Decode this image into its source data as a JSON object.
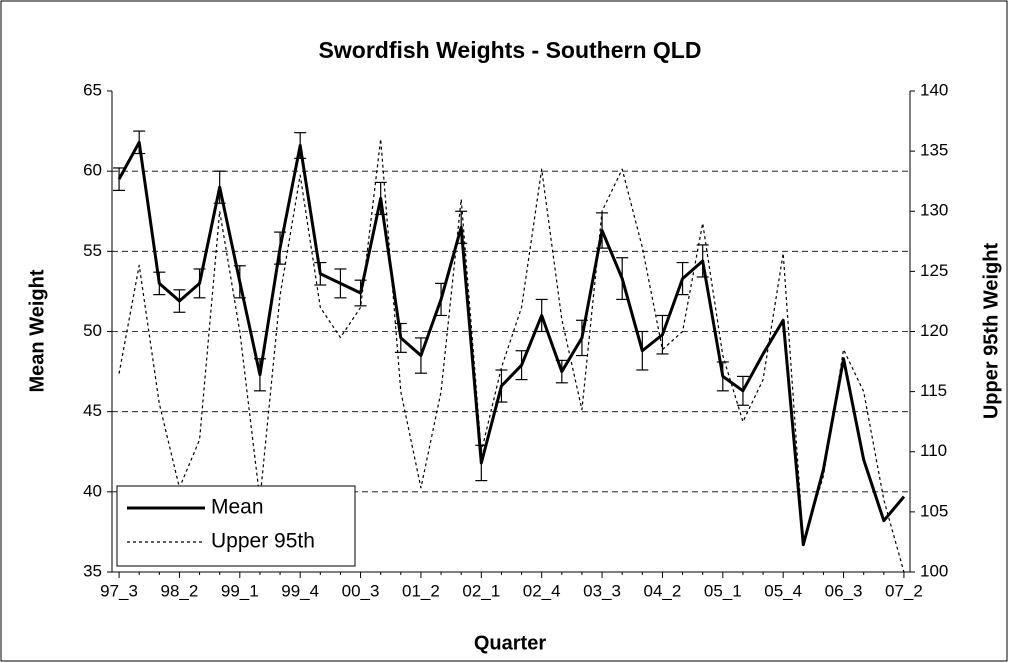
{
  "chart_data": {
    "type": "line",
    "title": "Swordfish Weights - Southern QLD",
    "x_label": "Quarter",
    "y_label": "Mean Weight",
    "y2_label": "Upper 95th Weight",
    "categories": [
      "97_3",
      null,
      null,
      "98_2",
      null,
      null,
      "99_1",
      null,
      null,
      "99_4",
      null,
      null,
      "00_3",
      null,
      null,
      "01_2",
      null,
      null,
      "02_1",
      null,
      null,
      "02_4",
      null,
      null,
      "03_3",
      null,
      null,
      "04_2",
      null,
      null,
      "05_1",
      null,
      null,
      "05_4",
      null,
      null,
      "06_3",
      null,
      null,
      "07_2"
    ],
    "series": [
      {
        "name": "Mean",
        "color": "#000000",
        "width": 3,
        "dash": null,
        "values": [
          59.5,
          61.8,
          53.0,
          51.9,
          53.0,
          59.0,
          53.1,
          47.3,
          55.2,
          61.6,
          53.6,
          53.0,
          52.4,
          58.3,
          49.6,
          48.5,
          52.0,
          56.5,
          41.8,
          46.6,
          47.9,
          51.0,
          47.5,
          49.6,
          56.3,
          53.3,
          48.8,
          49.8,
          53.3,
          54.4,
          47.2,
          46.3,
          48.6,
          50.7,
          36.7,
          41.4,
          48.3,
          42.0,
          38.2,
          39.7
        ],
        "errors": [
          0.7,
          0.7,
          0.7,
          0.7,
          0.9,
          1.0,
          1.0,
          1.0,
          1.0,
          0.8,
          0.7,
          0.9,
          0.8,
          1.0,
          0.9,
          1.1,
          1.0,
          1.0,
          1.1,
          1.0,
          0.9,
          1.0,
          0.7,
          1.1,
          1.1,
          1.3,
          1.2,
          1.2,
          1.0,
          1.0,
          0.9,
          0.9,
          null,
          null,
          null,
          null,
          null,
          null,
          null,
          null
        ]
      },
      {
        "name": "Upper 95th",
        "color": "#000000",
        "width": 1.2,
        "dash": "3,3",
        "axis": "y2",
        "values": [
          116.5,
          125.5,
          114,
          107,
          111,
          130,
          120,
          106,
          123,
          133,
          122,
          119.5,
          122,
          136,
          115,
          107,
          115,
          131,
          110,
          117,
          122,
          133.5,
          121,
          113.5,
          130,
          133.5,
          127,
          118.5,
          120,
          129,
          118,
          112.5,
          116,
          126.5,
          102.5,
          108,
          118.5,
          115,
          106,
          100
        ]
      }
    ],
    "ylim": [
      35,
      65
    ],
    "yticks": [
      35,
      40,
      45,
      50,
      55,
      60,
      65
    ],
    "y2lim": [
      100,
      140
    ],
    "y2ticks": [
      100,
      105,
      110,
      115,
      120,
      125,
      130,
      135,
      140
    ],
    "grid": true,
    "legend": "lower left"
  }
}
